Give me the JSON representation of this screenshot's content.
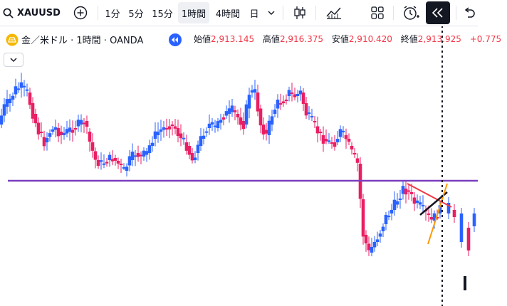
{
  "toolbar": {
    "symbol": "XAUUSD",
    "timeframes": [
      "1分",
      "5分",
      "15分",
      "1時間",
      "4時間",
      "日"
    ],
    "active_timeframe": "1時間"
  },
  "legend": {
    "symbol_full": "金／米ドル · 1時間 · OANDA",
    "ohlc": [
      {
        "label": "始値",
        "value": "2,913.145"
      },
      {
        "label": "高値",
        "value": "2,916.375"
      },
      {
        "label": "安値",
        "value": "2,910.420"
      },
      {
        "label": "終値",
        "value": "2,913.925"
      }
    ],
    "change": "+0.775"
  },
  "colors": {
    "up": "#2962ff",
    "down": "#e91e63",
    "support_line": "#7b3fbf",
    "accent": "#f23645"
  },
  "icons": [
    "search-icon",
    "plus-circle-icon",
    "chevron-down-icon",
    "candles-icon",
    "indicators-icon",
    "layout-grid-icon",
    "alert-clock-icon",
    "replay-icon",
    "undo-icon",
    "collapse-chevron-icon"
  ]
}
